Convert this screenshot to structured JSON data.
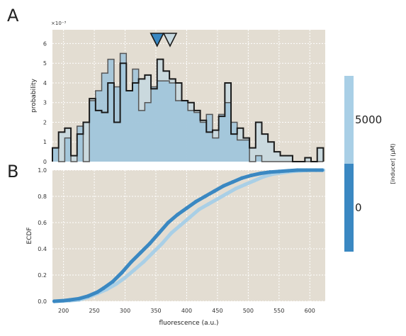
{
  "figure": {
    "panel_labels": [
      "A",
      "B"
    ],
    "colorbar": {
      "label": "[inducer] (μM)",
      "tick_labels": [
        "5000",
        "0"
      ],
      "colors": {
        "5000": "#a9cfe6",
        "0": "#3a88c2"
      }
    },
    "colors": {
      "background": "#e3ddd2",
      "grid": "#ffffff",
      "edge": "#1a1a1a",
      "edge_light": "#555555"
    }
  },
  "chart_data": [
    {
      "type": "bar",
      "subtype": "step-histogram",
      "title": "",
      "xlabel": "",
      "ylabel": "probability",
      "y_multiplier": "×10⁻³",
      "xlim": [
        182,
        625
      ],
      "ylim": [
        0,
        0.0067
      ],
      "yticks": [
        0,
        1,
        2,
        3,
        4,
        5,
        6
      ],
      "grid": true,
      "bin_edges": [
        182,
        192,
        202,
        212,
        222,
        232,
        242,
        252,
        262,
        272,
        282,
        292,
        302,
        312,
        322,
        332,
        342,
        352,
        362,
        372,
        382,
        392,
        402,
        412,
        422,
        432,
        442,
        452,
        462,
        472,
        482,
        492,
        502,
        512,
        522,
        532,
        542,
        552,
        562,
        572,
        582,
        592,
        602,
        612,
        622
      ],
      "series": [
        {
          "name": "0",
          "color": "#9dc3db",
          "values": [
            0.0007,
            0,
            0.0012,
            0,
            0.0018,
            0,
            0.0031,
            0.0036,
            0.0045,
            0.0052,
            0.0038,
            0.0055,
            0.0036,
            0.0047,
            0.0026,
            0.003,
            0.0038,
            0.0041,
            0.0041,
            0.004,
            0.0031,
            0.0031,
            0.0026,
            0.0025,
            0.002,
            0.0024,
            0.0012,
            0.0024,
            0.003,
            0.002,
            0.0011,
            0.0011,
            0,
            0.0003,
            0,
            0,
            0,
            0,
            0,
            0,
            0,
            0,
            0,
            0
          ]
        },
        {
          "name": "5000",
          "color": "#c6d8df",
          "values": [
            0.0007,
            0.0015,
            0.0017,
            0.0003,
            0.0014,
            0.002,
            0.0032,
            0.0026,
            0.0025,
            0.004,
            0.002,
            0.005,
            0.0036,
            0.004,
            0.0042,
            0.0044,
            0.0037,
            0.0052,
            0.0046,
            0.0042,
            0.004,
            0.0031,
            0.003,
            0.0026,
            0.0021,
            0.0015,
            0.0016,
            0.0023,
            0.004,
            0.0014,
            0.0017,
            0.0012,
            0.0007,
            0.002,
            0.0014,
            0.001,
            0.0005,
            0.0003,
            0.0003,
            0,
            0,
            0.0002,
            0,
            0.0007
          ]
        }
      ],
      "markers": [
        {
          "name": "0",
          "x": 352,
          "color": "#3a88c2"
        },
        {
          "name": "5000",
          "x": 373,
          "color": "#c6d8df"
        }
      ]
    },
    {
      "type": "scatter",
      "subtype": "ecdf",
      "title": "",
      "xlabel": "fluorescence (a.u.)",
      "ylabel": "ECDF",
      "xlim": [
        182,
        625
      ],
      "ylim": [
        0,
        1.0
      ],
      "xticks": [
        200,
        250,
        300,
        350,
        400,
        450,
        500,
        550,
        600
      ],
      "yticks": [
        0.0,
        0.2,
        0.4,
        0.6,
        0.8,
        1.0
      ],
      "ytick_labels": [
        "0.0",
        "0.2",
        "0.4",
        "0.6",
        "0.8",
        "1.0"
      ],
      "grid": true,
      "series": [
        {
          "name": "5000",
          "color": "#a9cfe6",
          "x": [
            185,
            210,
            225,
            240,
            255,
            270,
            285,
            300,
            315,
            330,
            345,
            360,
            375,
            390,
            405,
            420,
            435,
            450,
            465,
            480,
            495,
            510,
            525,
            540,
            555,
            570,
            585,
            600,
            615,
            622
          ],
          "y": [
            0,
            0.005,
            0.01,
            0.03,
            0.06,
            0.09,
            0.13,
            0.18,
            0.24,
            0.3,
            0.37,
            0.44,
            0.52,
            0.58,
            0.64,
            0.7,
            0.74,
            0.78,
            0.82,
            0.86,
            0.89,
            0.92,
            0.95,
            0.97,
            0.98,
            0.99,
            0.995,
            1.0,
            1.0,
            1.0
          ]
        },
        {
          "name": "0",
          "color": "#3a88c2",
          "x": [
            185,
            200,
            210,
            225,
            240,
            255,
            265,
            280,
            295,
            310,
            325,
            340,
            355,
            370,
            385,
            400,
            415,
            430,
            445,
            460,
            475,
            490,
            505,
            520,
            535,
            550,
            565,
            580,
            595,
            610,
            620
          ],
          "y": [
            0,
            0.005,
            0.01,
            0.02,
            0.04,
            0.07,
            0.1,
            0.15,
            0.22,
            0.3,
            0.37,
            0.44,
            0.52,
            0.6,
            0.66,
            0.71,
            0.76,
            0.8,
            0.84,
            0.88,
            0.91,
            0.94,
            0.96,
            0.975,
            0.985,
            0.99,
            0.995,
            1.0,
            1.0,
            1.0,
            1.0
          ]
        }
      ]
    }
  ]
}
